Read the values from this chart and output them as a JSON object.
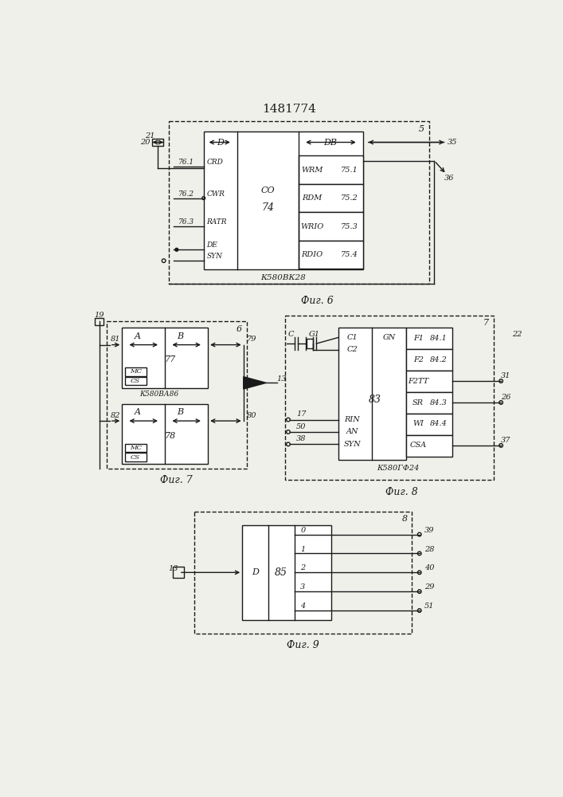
{
  "title": "1481774",
  "bg_color": "#f0f0eb",
  "line_color": "#1a1a1a",
  "fig6_caption": "Фиг. 6",
  "fig7_caption": "Фиг. 7",
  "fig8_caption": "Фиг. 8",
  "fig9_caption": "Фиг. 9"
}
